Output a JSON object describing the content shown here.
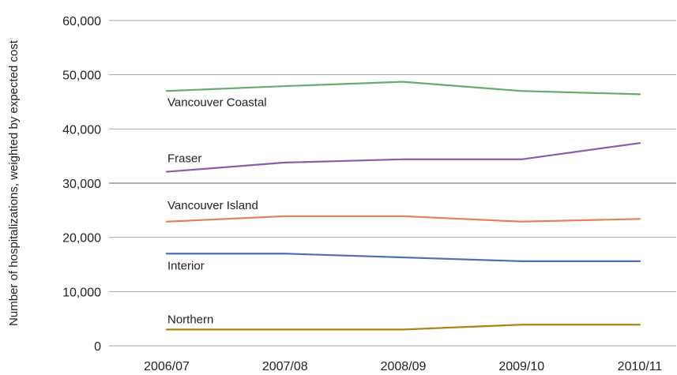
{
  "chart_data": {
    "type": "line",
    "ylabel": "Number of hospitalizations, weighted by expected cost",
    "xlabel": "",
    "categories": [
      "2006/07",
      "2007/08",
      "2008/09",
      "2009/10",
      "2010/11"
    ],
    "ylim": [
      0,
      60000
    ],
    "yticks": [
      0,
      10000,
      20000,
      30000,
      40000,
      50000,
      60000
    ],
    "ytick_labels": [
      "0",
      "10,000",
      "20,000",
      "30,000",
      "40,000",
      "50,000",
      "60,000"
    ],
    "grid": true,
    "legend": "none (series labelled directly on lines)",
    "series": [
      {
        "name": "Vancouver Coastal",
        "color": "#6aaa6e",
        "values": [
          47000,
          47900,
          48700,
          47000,
          46400
        ]
      },
      {
        "name": "Fraser",
        "color": "#8e5ba8",
        "values": [
          32100,
          33800,
          34400,
          34400,
          37400
        ]
      },
      {
        "name": "Vancouver Island",
        "color": "#e0855a",
        "values": [
          22900,
          23900,
          23900,
          22900,
          23400
        ]
      },
      {
        "name": "Interior",
        "color": "#4f6db8",
        "values": [
          17000,
          17000,
          16300,
          15600,
          15600
        ]
      },
      {
        "name": "Northern",
        "color": "#a8861a",
        "values": [
          3000,
          3000,
          3000,
          3900,
          3900
        ]
      }
    ]
  }
}
